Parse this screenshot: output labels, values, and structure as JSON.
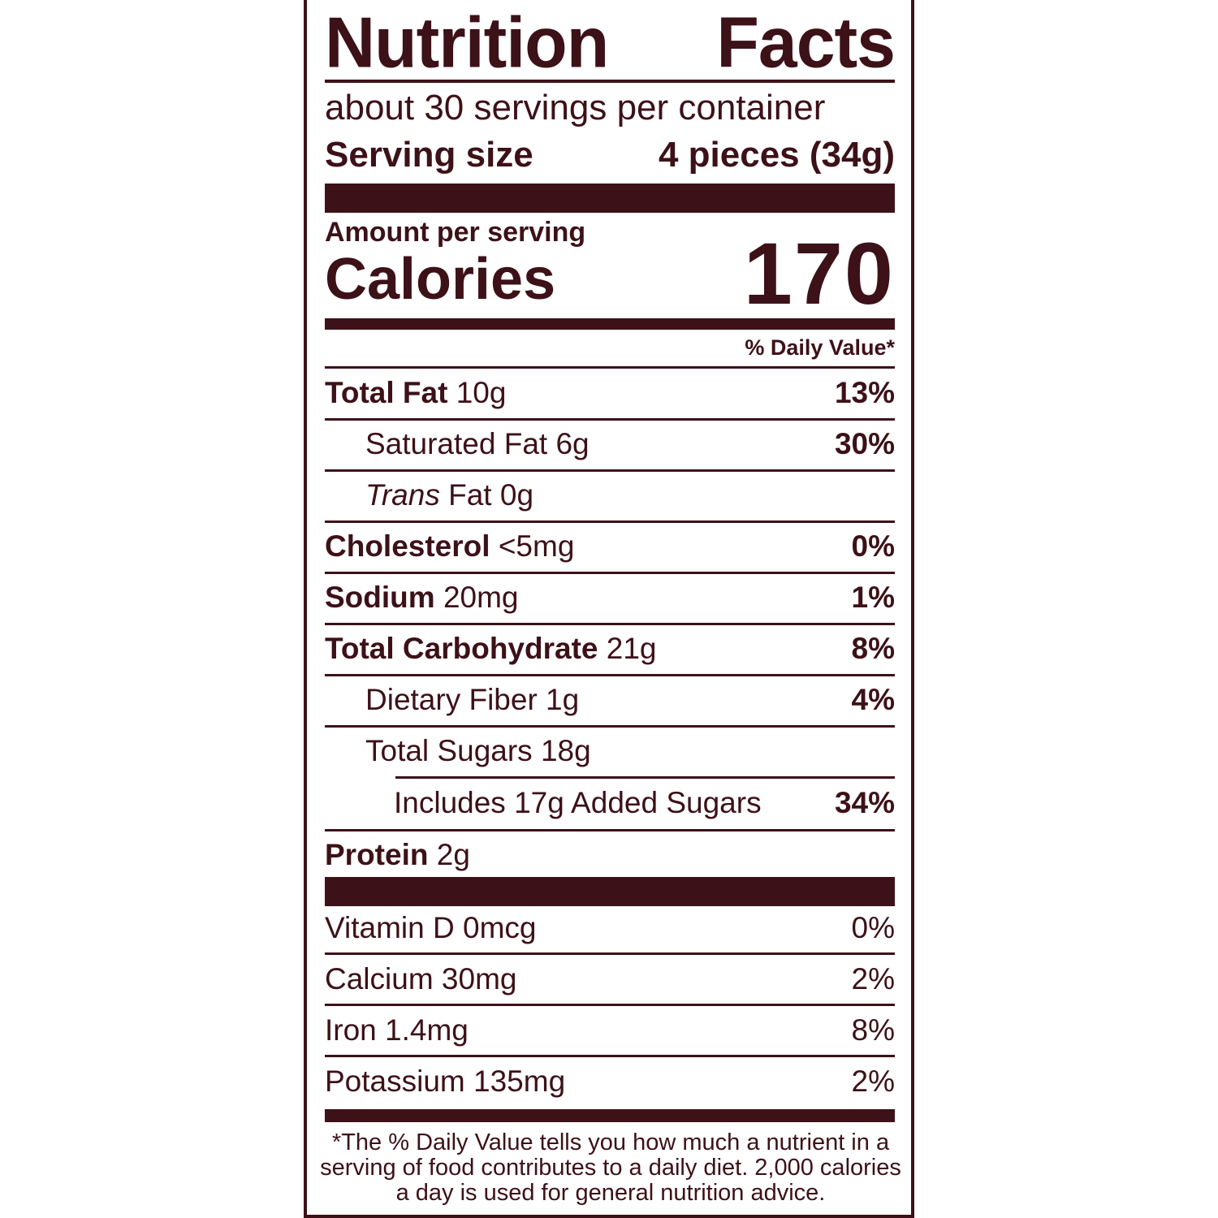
{
  "label": {
    "title_word1": "Nutrition",
    "title_word2": "Facts",
    "servings_per_container": "about 30 servings per container",
    "serving_size_label": "Serving size",
    "serving_size_value": "4 pieces (34g)",
    "amount_per_serving": "Amount per serving",
    "calories_label": "Calories",
    "calories_value": "170",
    "daily_value_header": "% Daily Value*",
    "nutrients": [
      {
        "name": "Total Fat",
        "amount": "10g",
        "dv": "13%"
      },
      {
        "name": "Saturated Fat 6g",
        "dv": "30%"
      },
      {
        "name_italic": "Trans",
        "name": "Fat 0g"
      },
      {
        "name": "Cholesterol",
        "amount": "<5mg",
        "dv": "0%"
      },
      {
        "name": "Sodium",
        "amount": "20mg",
        "dv": "1%"
      },
      {
        "name": "Total Carbohydrate",
        "amount": "21g",
        "dv": "8%"
      },
      {
        "name": "Dietary Fiber 1g",
        "dv": "4%"
      },
      {
        "name": "Total Sugars 18g"
      },
      {
        "name": "Includes 17g Added Sugars",
        "dv": "34%"
      },
      {
        "name": "Protein",
        "amount": "2g"
      }
    ],
    "vitamins": [
      {
        "name": "Vitamin D 0mcg",
        "dv": "0%"
      },
      {
        "name": "Calcium 30mg",
        "dv": "2%"
      },
      {
        "name": "Iron 1.4mg",
        "dv": "8%"
      },
      {
        "name": "Potassium 135mg",
        "dv": "2%"
      }
    ],
    "footnote": "*The % Daily Value tells you how much a nutrient in a serving of food contributes to a daily diet. 2,000 calories a day is used for general nutrition advice."
  },
  "colors": {
    "ink": "#3d1118",
    "background": "#ffffff"
  }
}
